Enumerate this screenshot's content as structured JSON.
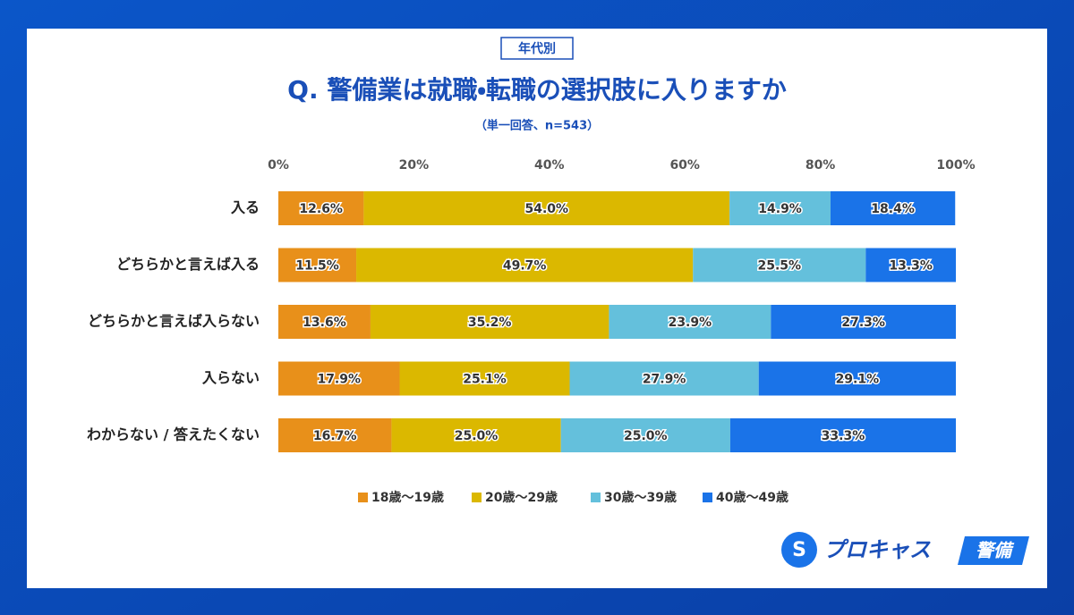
{
  "chart_data": {
    "type": "stacked-barh",
    "tag": "年代別",
    "title": "Q. 警備業は就職・転職の選択肢に入りますか",
    "subtitle": "（単一回答、n=543）",
    "categories": [
      "入る",
      "どちらかと言えば入る",
      "どちらかと言えば入らない",
      "入らない",
      "わからない / 答えたくない"
    ],
    "series": [
      {
        "name": "18歳〜19歳",
        "color": "#e8901a",
        "values": [
          12.6,
          11.5,
          13.6,
          17.9,
          16.7
        ],
        "value_labels": [
          "12.6%",
          "11.5%",
          "13.6%",
          "17.9%",
          "16.7%"
        ]
      },
      {
        "name": "20歳〜29歳",
        "color": "#dbb800",
        "values": [
          54.0,
          49.7,
          35.2,
          25.1,
          25.0
        ],
        "value_labels": [
          "54.0%",
          "49.7%",
          "35.2%",
          "25.1%",
          "25.0%"
        ]
      },
      {
        "name": "30歳〜39歳",
        "color": "#64c0dc",
        "values": [
          14.9,
          25.5,
          23.9,
          27.9,
          25.0
        ],
        "value_labels": [
          "14.9%",
          "25.5%",
          "23.9%",
          "27.9%",
          "25.0%"
        ]
      },
      {
        "name": "40歳〜49歳",
        "color": "#1a73e8",
        "values": [
          18.4,
          13.3,
          27.3,
          29.1,
          33.3
        ],
        "value_labels": [
          "18.4%",
          "13.3%",
          "27.3%",
          "29.1%",
          "33.3%"
        ]
      }
    ],
    "xlim": [
      0,
      100
    ],
    "xticks": [
      {
        "value": 0,
        "label": "0%"
      },
      {
        "value": 20,
        "label": "20%"
      },
      {
        "value": 40,
        "label": "40%"
      },
      {
        "value": 60,
        "label": "60%"
      },
      {
        "value": 80,
        "label": "80%"
      },
      {
        "value": 100,
        "label": "100%"
      }
    ],
    "legend": "bottom"
  },
  "logo": {
    "name": "プロキャス",
    "badge": "警備"
  }
}
